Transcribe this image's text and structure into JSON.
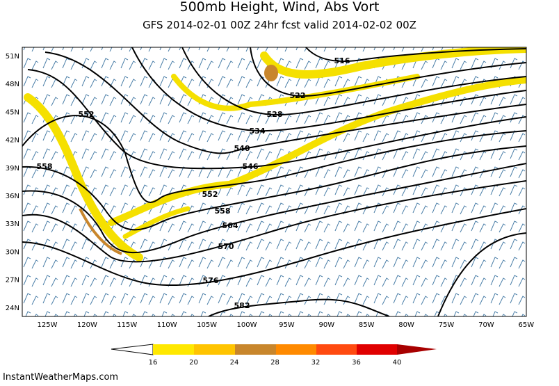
{
  "header": {
    "title": "500mb Height, Wind, Abs Vort",
    "subtitle": "GFS 2014-02-01 00Z 24hr fcst valid 2014-02-02 00Z"
  },
  "map": {
    "lat_labels": [
      "51N",
      "48N",
      "45N",
      "42N",
      "39N",
      "36N",
      "33N",
      "30N",
      "27N",
      "24N"
    ],
    "lon_labels": [
      "125W",
      "120W",
      "115W",
      "110W",
      "105W",
      "100W",
      "95W",
      "90W",
      "85W",
      "80W",
      "75W",
      "70W",
      "65W"
    ],
    "contour_labels": [
      "516",
      "522",
      "528",
      "534",
      "540",
      "546",
      "552",
      "552",
      "558",
      "558",
      "564",
      "570",
      "576",
      "582"
    ]
  },
  "colorbar": {
    "labels": [
      16,
      20,
      24,
      28,
      32,
      36,
      40
    ]
  },
  "footer": "InstantWeatherMaps.com"
}
